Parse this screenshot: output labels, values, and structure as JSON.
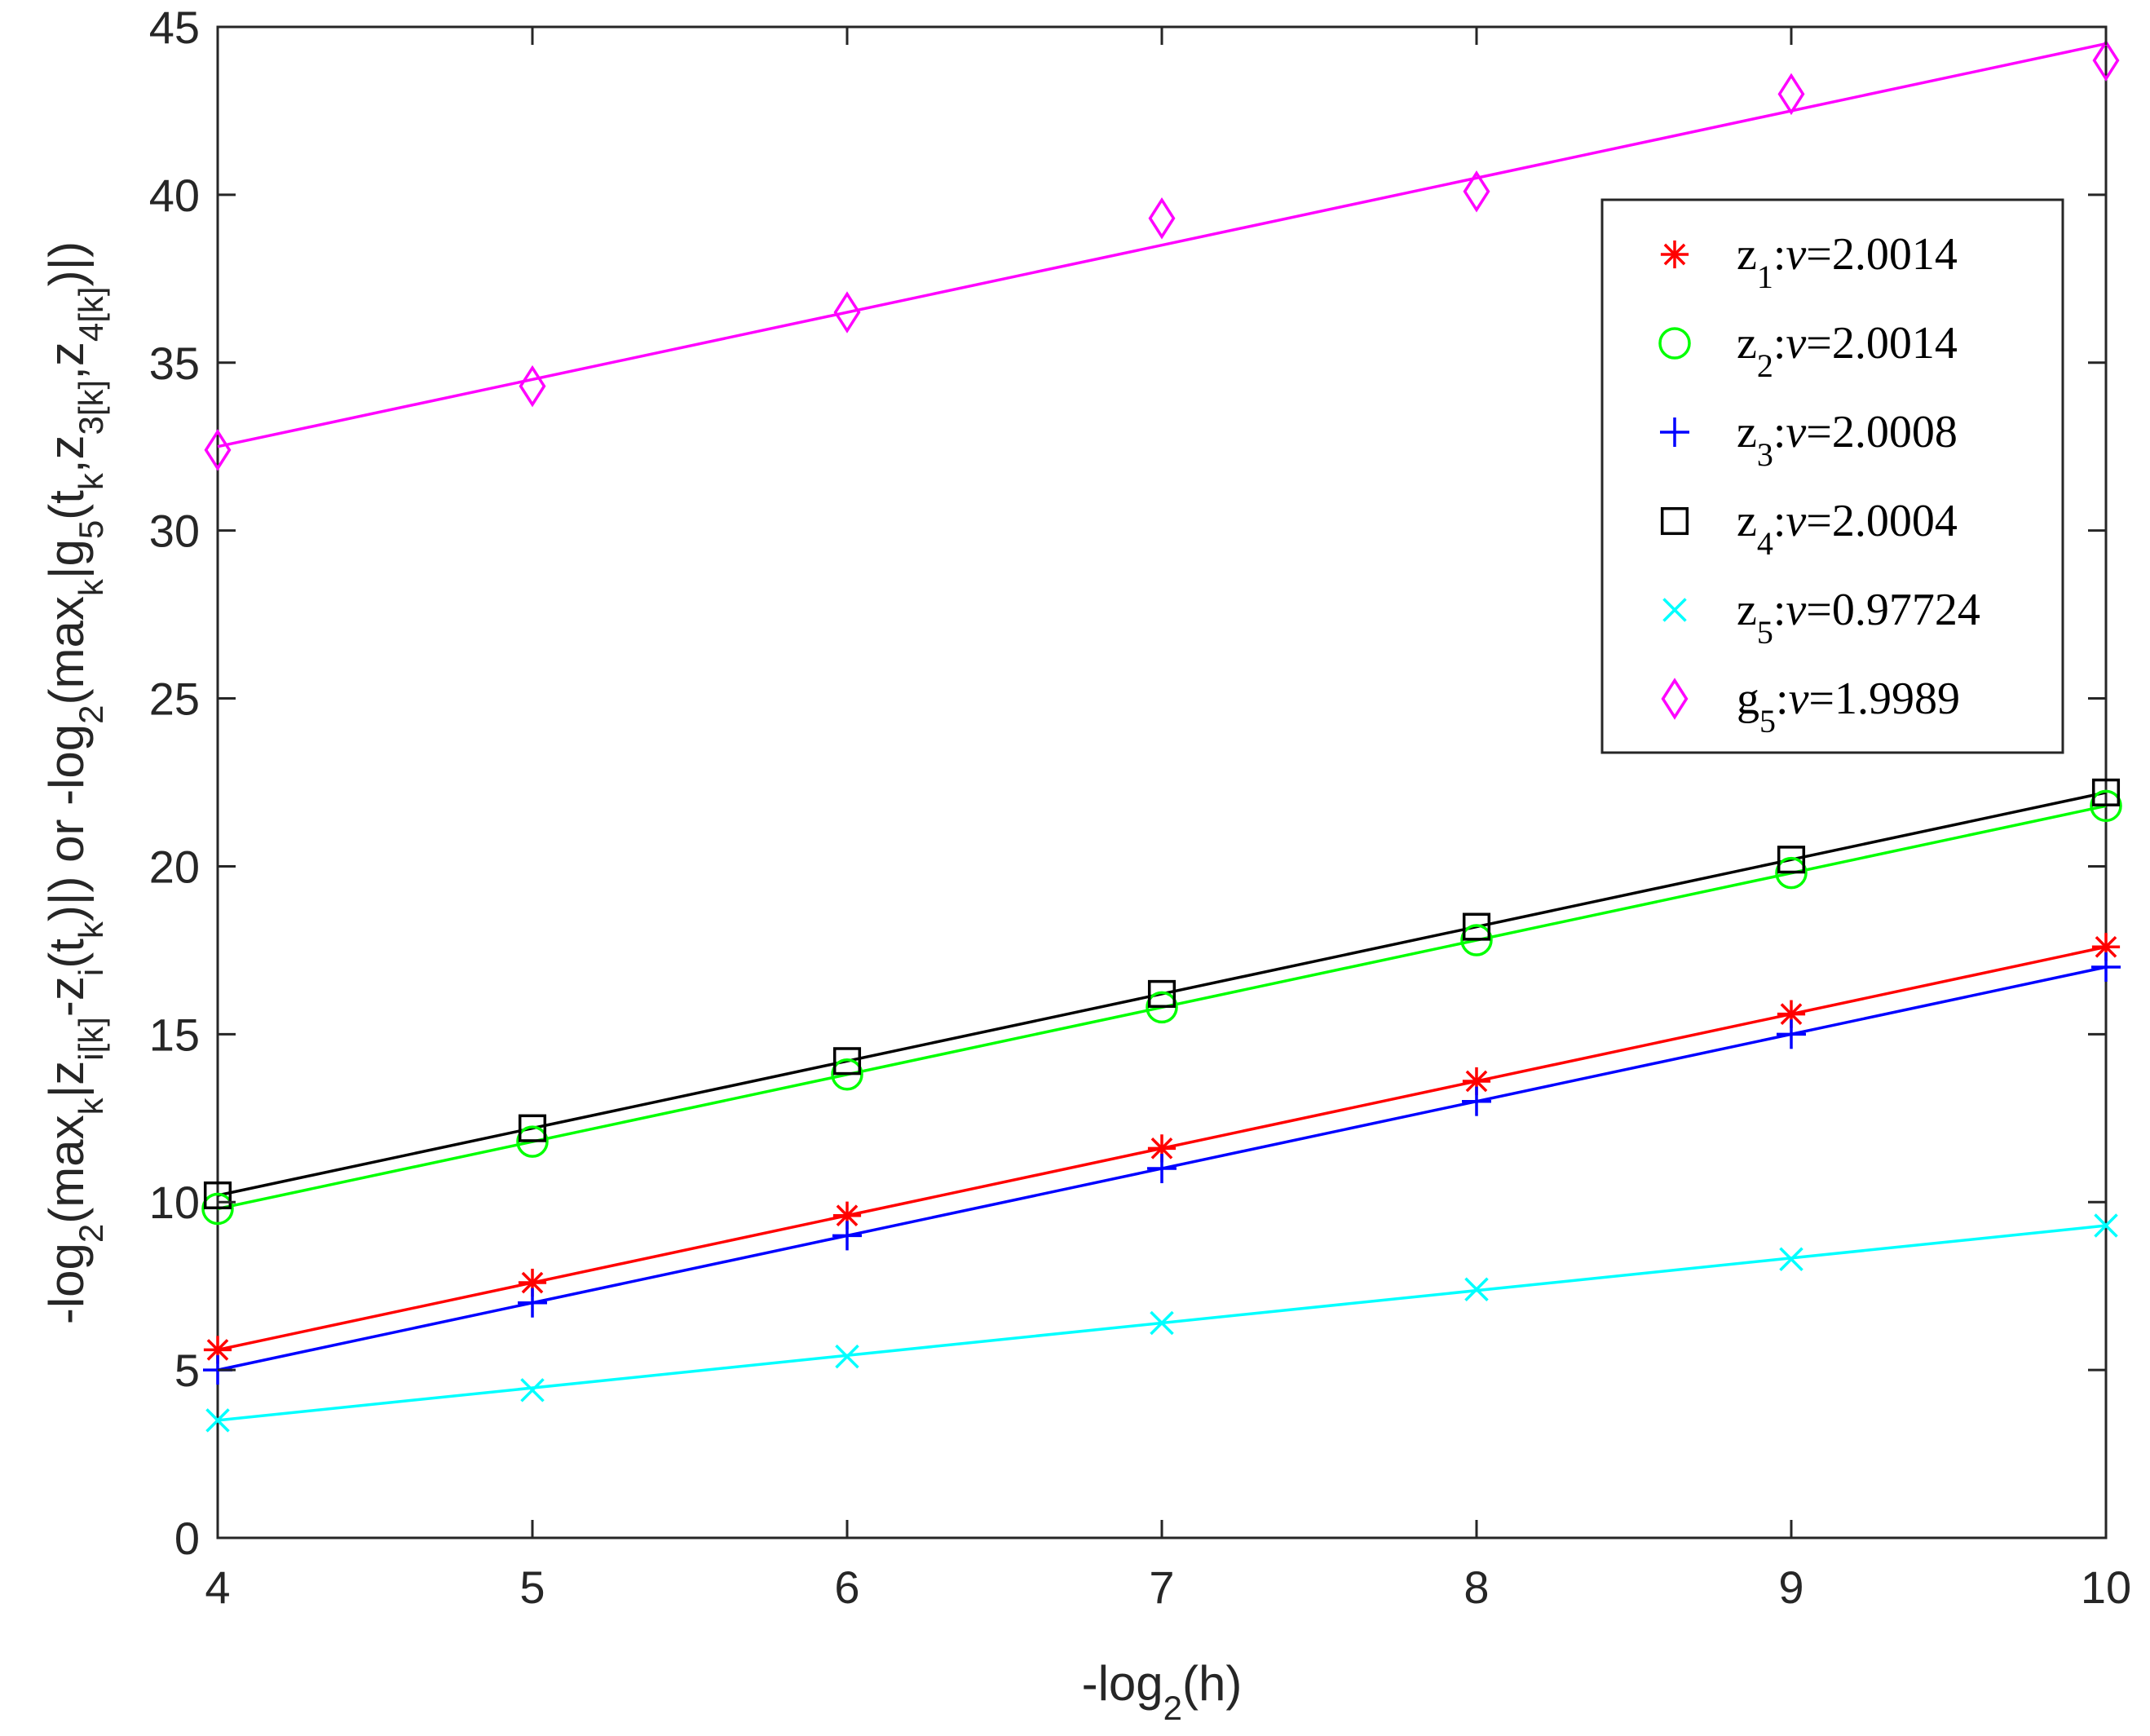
{
  "chart_data": {
    "type": "line",
    "title": "",
    "xlabel": {
      "pre": "-log",
      "sub": "2",
      "post": "(h)"
    },
    "ylabel": [
      {
        "t": "-log"
      },
      {
        "t": "2",
        "s": "sub"
      },
      {
        "t": "(max"
      },
      {
        "t": "k",
        "s": "sub"
      },
      {
        "t": "|z"
      },
      {
        "t": "i[k]",
        "s": "sub"
      },
      {
        "t": "-z"
      },
      {
        "t": "i",
        "s": "sub"
      },
      {
        "t": "(t"
      },
      {
        "t": "k",
        "s": "sub"
      },
      {
        "t": ")|) or -log"
      },
      {
        "t": "2",
        "s": "sub"
      },
      {
        "t": "(max"
      },
      {
        "t": "k",
        "s": "sub"
      },
      {
        "t": "|g"
      },
      {
        "t": "5",
        "s": "sub"
      },
      {
        "t": "(t"
      },
      {
        "t": "k",
        "s": "sub"
      },
      {
        "t": ",z"
      },
      {
        "t": "3[k]",
        "s": "sub"
      },
      {
        "t": ",z"
      },
      {
        "t": "4[k]",
        "s": "sub"
      },
      {
        "t": ")|)"
      }
    ],
    "xlim": [
      4,
      10
    ],
    "ylim": [
      0,
      45
    ],
    "xticks": [
      4,
      5,
      6,
      7,
      8,
      9,
      10
    ],
    "yticks": [
      0,
      5,
      10,
      15,
      20,
      25,
      30,
      35,
      40,
      45
    ],
    "grid": false,
    "legend_position": "top-right",
    "x": [
      4,
      5,
      6,
      7,
      8,
      9,
      10
    ],
    "series": [
      {
        "name": "z1",
        "var": "z",
        "sub": "1",
        "nu": "2.0014",
        "marker": "asterisk",
        "color": "#ff0000",
        "values": [
          5.6,
          7.6,
          9.6,
          11.6,
          13.6,
          15.6,
          17.6
        ],
        "fit": [
          5.6,
          17.6
        ]
      },
      {
        "name": "z2",
        "var": "z",
        "sub": "2",
        "nu": "2.0014",
        "marker": "circle",
        "color": "#00ff00",
        "values": [
          9.8,
          11.8,
          13.8,
          15.8,
          17.8,
          19.8,
          21.8
        ],
        "fit": [
          9.8,
          21.8
        ]
      },
      {
        "name": "z3",
        "var": "z",
        "sub": "3",
        "nu": "2.0008",
        "marker": "plus",
        "color": "#0000ff",
        "values": [
          5.0,
          7.0,
          9.0,
          11.0,
          13.0,
          15.0,
          17.0
        ],
        "fit": [
          5.0,
          17.0
        ]
      },
      {
        "name": "z4",
        "var": "z",
        "sub": "4",
        "nu": "2.0004",
        "marker": "square",
        "color": "#000000",
        "values": [
          10.2,
          12.2,
          14.2,
          16.2,
          18.2,
          20.2,
          22.2
        ],
        "fit": [
          10.2,
          22.2
        ]
      },
      {
        "name": "z5",
        "var": "z",
        "sub": "5",
        "nu": "0.97724",
        "marker": "cross",
        "color": "#00ffff",
        "values": [
          3.5,
          4.4,
          5.4,
          6.4,
          7.4,
          8.3,
          9.3
        ],
        "fit": [
          3.5,
          9.3
        ]
      },
      {
        "name": "g5",
        "var": "g",
        "sub": "5",
        "nu": "1.9989",
        "marker": "diamond",
        "color": "#ff00ff",
        "values": [
          32.4,
          34.3,
          36.5,
          39.3,
          40.1,
          43.0,
          44.0
        ],
        "fit": [
          32.5,
          44.5
        ]
      }
    ]
  }
}
